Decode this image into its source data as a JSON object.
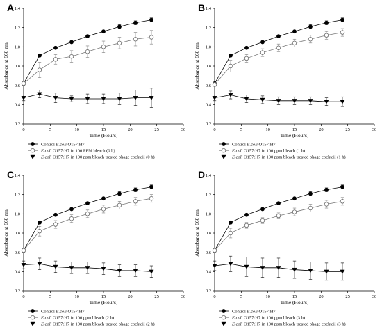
{
  "chart_data": [
    {
      "type": "line",
      "panel_label": "A",
      "xlabel": "Time (Hours)",
      "ylabel": "Absorbance at 660 nm",
      "xlim": [
        0,
        30
      ],
      "ylim": [
        0.2,
        1.4
      ],
      "xticks": [
        "0",
        "5",
        "10",
        "15",
        "20",
        "25",
        "30"
      ],
      "yticks": [
        "0.2",
        "0.4",
        "0.6",
        "0.8",
        "1.0",
        "1.2",
        "1.4"
      ],
      "x": [
        0,
        3,
        6,
        9,
        12,
        15,
        18,
        21,
        24
      ],
      "grid": false,
      "legend_position": "bottom",
      "series": [
        {
          "marker": "filled-circle",
          "legend": {
            "pre": "Control ",
            "ital": "E.coli",
            "post": " O157:H7"
          },
          "values": [
            0.62,
            0.91,
            0.99,
            1.05,
            1.11,
            1.16,
            1.21,
            1.25,
            1.28
          ],
          "errors": [
            0.01,
            0.01,
            0.01,
            0.01,
            0.01,
            0.01,
            0.02,
            0.02,
            0.02
          ]
        },
        {
          "marker": "open-circle",
          "legend": {
            "pre": "",
            "ital": "E.coli",
            "post": " O157:H7 in 100 PPM bleach (0 h)"
          },
          "values": [
            0.62,
            0.76,
            0.87,
            0.9,
            0.95,
            1.0,
            1.04,
            1.08,
            1.1
          ],
          "errors": [
            0.02,
            0.08,
            0.05,
            0.06,
            0.06,
            0.06,
            0.06,
            0.07,
            0.07
          ]
        },
        {
          "marker": "filled-triangle-down",
          "legend": {
            "pre": "",
            "ital": "E.coli",
            "post": " O157:H7  in 100 ppm bleach treated  phage cocktail (0 h)"
          },
          "values": [
            0.47,
            0.51,
            0.47,
            0.46,
            0.46,
            0.46,
            0.46,
            0.47,
            0.47
          ],
          "errors": [
            0.03,
            0.04,
            0.05,
            0.03,
            0.05,
            0.05,
            0.06,
            0.08,
            0.1
          ]
        }
      ]
    },
    {
      "type": "line",
      "panel_label": "B",
      "xlabel": "Time (Hours)",
      "ylabel": "Absorbance at 660 nm",
      "xlim": [
        0,
        30
      ],
      "ylim": [
        0.2,
        1.4
      ],
      "xticks": [
        "0",
        "5",
        "10",
        "15",
        "20",
        "25",
        "30"
      ],
      "yticks": [
        "0.2",
        "0.4",
        "0.6",
        "0.8",
        "1.0",
        "1.2",
        "1.4"
      ],
      "x": [
        0,
        3,
        6,
        9,
        12,
        15,
        18,
        21,
        24
      ],
      "grid": false,
      "legend_position": "bottom",
      "series": [
        {
          "marker": "filled-circle",
          "legend": {
            "pre": "Control ",
            "ital": "E.coli",
            "post": " O157:H7"
          },
          "values": [
            0.62,
            0.91,
            0.99,
            1.05,
            1.11,
            1.16,
            1.21,
            1.25,
            1.28
          ],
          "errors": [
            0.01,
            0.01,
            0.01,
            0.01,
            0.01,
            0.01,
            0.02,
            0.02,
            0.02
          ]
        },
        {
          "marker": "open-circle",
          "legend": {
            "pre": "",
            "ital": "E.coli",
            "post": " O157:H7 in 100 ppm bleach (1 h)"
          },
          "values": [
            0.61,
            0.8,
            0.88,
            0.94,
            0.99,
            1.04,
            1.08,
            1.12,
            1.15
          ],
          "errors": [
            0.02,
            0.06,
            0.04,
            0.04,
            0.04,
            0.04,
            0.04,
            0.04,
            0.04
          ]
        },
        {
          "marker": "filled-triangle-down",
          "legend": {
            "pre": "",
            "ital": "E.coli",
            "post": " O157:H7  in 100 ppm bleach treated  phage cocktail (1 h)"
          },
          "values": [
            0.47,
            0.5,
            0.46,
            0.45,
            0.44,
            0.44,
            0.44,
            0.43,
            0.43
          ],
          "errors": [
            0.03,
            0.04,
            0.04,
            0.04,
            0.04,
            0.04,
            0.04,
            0.04,
            0.05
          ]
        }
      ]
    },
    {
      "type": "line",
      "panel_label": "C",
      "xlabel": "Time (Hours)",
      "ylabel": "Absorbance at 660 nm",
      "xlim": [
        0,
        30
      ],
      "ylim": [
        0.2,
        1.4
      ],
      "xticks": [
        "0",
        "5",
        "10",
        "15",
        "20",
        "25",
        "30"
      ],
      "yticks": [
        "0.2",
        "0.4",
        "0.6",
        "0.8",
        "1.0",
        "1.2",
        "1.4"
      ],
      "x": [
        0,
        3,
        6,
        9,
        12,
        15,
        18,
        21,
        24
      ],
      "grid": false,
      "legend_position": "bottom",
      "series": [
        {
          "marker": "filled-circle",
          "legend": {
            "pre": "Control ",
            "ital": "E.coli",
            "post": " O157:H7"
          },
          "values": [
            0.62,
            0.91,
            0.99,
            1.05,
            1.11,
            1.16,
            1.21,
            1.25,
            1.28
          ],
          "errors": [
            0.01,
            0.01,
            0.01,
            0.01,
            0.01,
            0.01,
            0.02,
            0.02,
            0.02
          ]
        },
        {
          "marker": "open-circle",
          "legend": {
            "pre": "",
            "ital": "E.coli",
            "post": " O157:H7 in 100 ppm bleach (2 h)"
          },
          "values": [
            0.62,
            0.82,
            0.89,
            0.95,
            1.0,
            1.05,
            1.09,
            1.13,
            1.16
          ],
          "errors": [
            0.02,
            0.05,
            0.04,
            0.04,
            0.04,
            0.04,
            0.04,
            0.04,
            0.04
          ]
        },
        {
          "marker": "filled-triangle-down",
          "legend": {
            "pre": "",
            "ital": "E.coli",
            "post": " O157:H7  in 100 ppm bleach treated  phage cocktail (2 h)"
          },
          "values": [
            0.47,
            0.48,
            0.45,
            0.44,
            0.44,
            0.43,
            0.41,
            0.41,
            0.4
          ],
          "errors": [
            0.04,
            0.06,
            0.06,
            0.06,
            0.06,
            0.06,
            0.06,
            0.06,
            0.06
          ]
        }
      ]
    },
    {
      "type": "line",
      "panel_label": "D",
      "xlabel": "Time (Hours)",
      "ylabel": "Absorbance at 660 nm",
      "xlim": [
        0,
        30
      ],
      "ylim": [
        0.2,
        1.4
      ],
      "xticks": [
        "0",
        "5",
        "10",
        "15",
        "20",
        "25",
        "30"
      ],
      "yticks": [
        "0.2",
        "0.4",
        "0.6",
        "0.8",
        "1.0",
        "1.2",
        "1.4"
      ],
      "x": [
        0,
        3,
        6,
        9,
        12,
        15,
        18,
        21,
        24
      ],
      "grid": false,
      "legend_position": "bottom",
      "series": [
        {
          "marker": "filled-circle",
          "legend": {
            "pre": "Control ",
            "ital": "E.coli",
            "post": " O157:H7"
          },
          "values": [
            0.62,
            0.91,
            0.99,
            1.05,
            1.11,
            1.16,
            1.21,
            1.25,
            1.28
          ],
          "errors": [
            0.01,
            0.01,
            0.01,
            0.01,
            0.01,
            0.01,
            0.02,
            0.02,
            0.02
          ]
        },
        {
          "marker": "open-circle",
          "legend": {
            "pre": "",
            "ital": "E.coli",
            "post": " O157:H7 in 100 ppm bleach (3 h)"
          },
          "values": [
            0.62,
            0.8,
            0.88,
            0.93,
            0.98,
            1.02,
            1.06,
            1.1,
            1.13
          ],
          "errors": [
            0.02,
            0.05,
            0.03,
            0.03,
            0.03,
            0.04,
            0.04,
            0.04,
            0.04
          ]
        },
        {
          "marker": "filled-triangle-down",
          "legend": {
            "pre": "",
            "ital": "E.coli",
            "post": " O157:H7  in 100 ppm bleach treated  phage cocktail (3 h)"
          },
          "values": [
            0.46,
            0.48,
            0.45,
            0.44,
            0.44,
            0.42,
            0.41,
            0.4,
            0.4
          ],
          "errors": [
            0.05,
            0.08,
            0.1,
            0.1,
            0.1,
            0.09,
            0.09,
            0.09,
            0.09
          ]
        }
      ]
    }
  ]
}
